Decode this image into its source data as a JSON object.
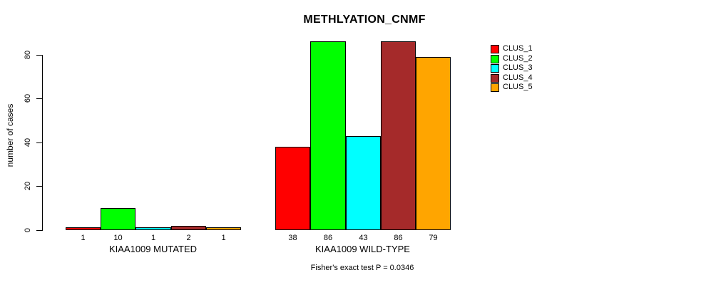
{
  "chart_data": {
    "type": "bar",
    "title": "METHLYATION_CNMF",
    "ylabel": "number of cases",
    "xlabel": "",
    "ylim": [
      0,
      86
    ],
    "yticks": [
      0,
      20,
      40,
      60,
      80
    ],
    "grid": false,
    "legend_position": "right",
    "value_labels_shown": true,
    "bar_border_color": "#000000",
    "series_names": [
      "CLUS_1",
      "CLUS_2",
      "CLUS_3",
      "CLUS_4",
      "CLUS_5"
    ],
    "colors": [
      "#ff0000",
      "#00ff00",
      "#00ffff",
      "#a52a2a",
      "#ffa500"
    ],
    "groups": [
      {
        "label": "KIAA1009 MUTATED",
        "values": [
          1,
          10,
          1,
          2,
          1
        ]
      },
      {
        "label": "KIAA1009 WILD-TYPE",
        "values": [
          38,
          86,
          43,
          86,
          79
        ]
      }
    ],
    "annotation": "Fisher's exact test P = 0.0346"
  }
}
